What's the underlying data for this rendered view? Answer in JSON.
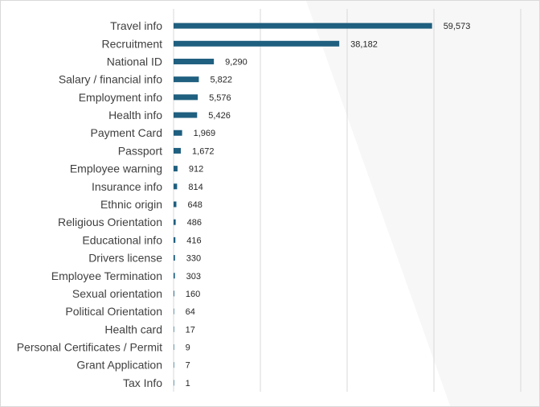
{
  "chart_data": {
    "type": "bar",
    "orientation": "horizontal",
    "title": "",
    "xlabel": "",
    "ylabel": "",
    "xlim": [
      0,
      80000
    ],
    "grid": true,
    "bar_color": "#1F5F7F",
    "categories": [
      "Travel info",
      "Recruitment",
      "National ID",
      "Salary / financial info",
      "Employment info",
      "Health info",
      "Payment Card",
      "Passport",
      "Employee warning",
      "Insurance info",
      "Ethnic origin",
      "Religious Orientation",
      "Educational info",
      "Drivers license",
      "Employee Termination",
      "Sexual orientation",
      "Political Orientation",
      "Health card",
      "Personal Certificates / Permit",
      "Grant Application",
      "Tax Info"
    ],
    "values": [
      59573,
      38182,
      9290,
      5822,
      5576,
      5426,
      1969,
      1672,
      912,
      814,
      648,
      486,
      416,
      330,
      303,
      160,
      64,
      17,
      9,
      7,
      1
    ],
    "value_labels": [
      "59,573",
      "38,182",
      "9,290",
      "5,822",
      "5,576",
      "5,426",
      "1,969",
      "1,672",
      "912",
      "814",
      "648",
      "486",
      "416",
      "330",
      "303",
      "160",
      "64",
      "17",
      "9",
      "7",
      "1"
    ]
  }
}
